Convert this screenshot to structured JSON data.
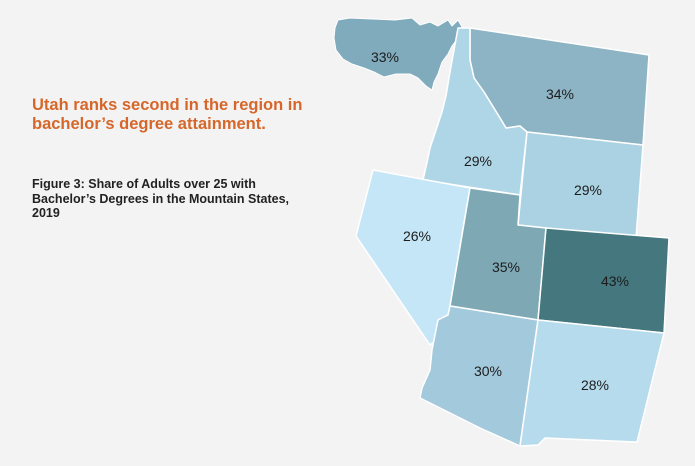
{
  "headline": "Utah ranks second in the region in bachelor’s degree attainment.",
  "caption": "Figure 3: Share of Adults over 25 with Bachelor’s Degrees in the Mountain States, 2019",
  "regions": {
    "us": {
      "label": "33%",
      "value": 33,
      "color": "#7fabbd"
    },
    "montana": {
      "label": "34%",
      "value": 34,
      "color": "#8db4c4"
    },
    "idaho": {
      "label": "29%",
      "value": 29,
      "color": "#afd6e7"
    },
    "wyoming": {
      "label": "29%",
      "value": 29,
      "color": "#aad2e3"
    },
    "nevada": {
      "label": "26%",
      "value": 26,
      "color": "#c5e6f6"
    },
    "utah": {
      "label": "35%",
      "value": 35,
      "color": "#7ea9b4"
    },
    "colorado": {
      "label": "43%",
      "value": 43,
      "color": "#44777e"
    },
    "arizona": {
      "label": "30%",
      "value": 30,
      "color": "#a3c9dc"
    },
    "new_mexico": {
      "label": "28%",
      "value": 28,
      "color": "#b6dbec"
    }
  }
}
